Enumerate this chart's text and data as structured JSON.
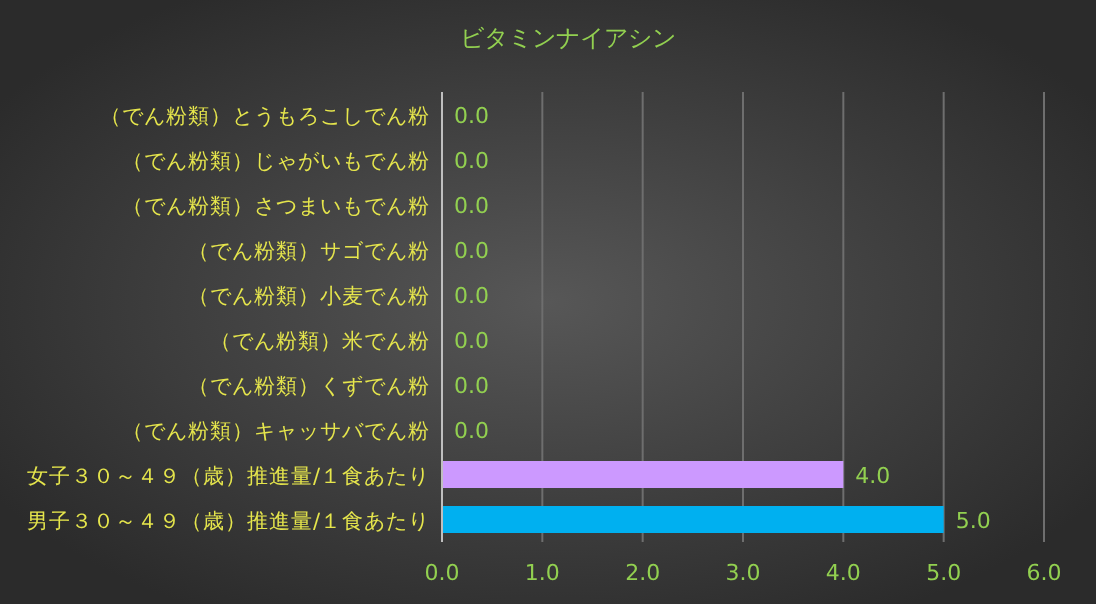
{
  "chart_data": {
    "type": "bar",
    "orientation": "horizontal",
    "title": "ビタミンナイアシン",
    "categories": [
      "（でん粉類）とうもろこしでん粉",
      "（でん粉類）じゃがいもでん粉",
      "（でん粉類）さつまいもでん粉",
      "（でん粉類）サゴでん粉",
      "（でん粉類）小麦でん粉",
      "（でん粉類）米でん粉",
      "（でん粉類）くずでん粉",
      "（でん粉類）キャッサバでん粉",
      "女子３０～４９（歳）推進量/１食あたり",
      "男子３０～４９（歳）推進量/１食あたり"
    ],
    "values": [
      0,
      0,
      0,
      0,
      0,
      0,
      0,
      0,
      4,
      5
    ],
    "colors": [
      "#00b0f0",
      "#00b0f0",
      "#00b0f0",
      "#00b0f0",
      "#00b0f0",
      "#00b0f0",
      "#00b0f0",
      "#00b0f0",
      "#cc99ff",
      "#00b0f0"
    ],
    "value_labels": [
      "0.0",
      "0.0",
      "0.0",
      "0.0",
      "0.0",
      "0.0",
      "0.0",
      "0.0",
      "4.0",
      "5.0"
    ],
    "xlim": [
      0,
      6
    ],
    "xticks": [
      {
        "value": 0,
        "label": "0.0"
      },
      {
        "value": 1,
        "label": "1.0"
      },
      {
        "value": 2,
        "label": "2.0"
      },
      {
        "value": 3,
        "label": "3.0"
      },
      {
        "value": 4,
        "label": "4.0"
      },
      {
        "value": 5,
        "label": "5.0"
      },
      {
        "value": 6,
        "label": "6.0"
      }
    ],
    "grid": "x"
  }
}
